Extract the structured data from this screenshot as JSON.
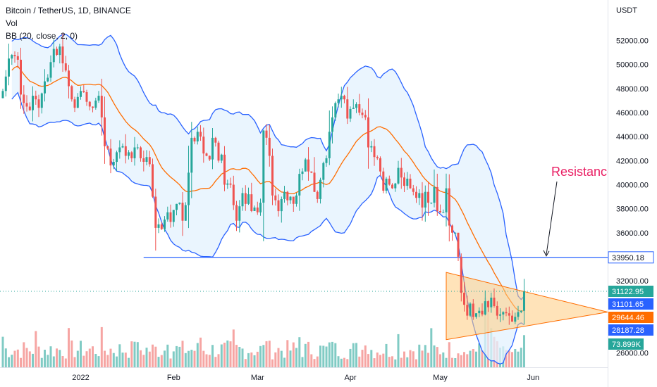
{
  "legend": {
    "symbol_line": "Bitcoin / TetherUS, 1D, BINANCE",
    "vol_label": "Vol",
    "bb_label": "BB (20, close, 2, 0)"
  },
  "colors": {
    "up": "#26a69a",
    "down": "#ef5350",
    "bb_band": "#2962ff",
    "bb_basis": "#ff6d00",
    "bb_fill": "#e3f2fd",
    "triangle_fill": "#ffcc80",
    "resistance": "#2962ff",
    "annotation": "#e91e63"
  },
  "chart_data": {
    "type": "candlestick",
    "y_axis_unit": "USDT",
    "ylim": [
      24800,
      54200
    ],
    "y_ticks": [
      26000,
      28000,
      30000,
      32000,
      34000,
      36000,
      38000,
      40000,
      42000,
      44000,
      46000,
      48000,
      50000,
      52000
    ],
    "y_tick_labels": [
      "26000.00",
      "28000.00",
      "30000.00",
      "32000.00",
      "34000.00",
      "36000.00",
      "38000.00",
      "40000.00",
      "42000.00",
      "44000.00",
      "46000.00",
      "48000.00",
      "50000.00",
      "52000.00"
    ],
    "x_ticks": [
      {
        "day": 26,
        "label": "2022"
      },
      {
        "day": 57,
        "label": "Feb"
      },
      {
        "day": 85,
        "label": "Mar"
      },
      {
        "day": 116,
        "label": "Apr"
      },
      {
        "day": 146,
        "label": "May"
      },
      {
        "day": 177,
        "label": "Jun"
      }
    ],
    "closes": [
      47800,
      49000,
      50500,
      50800,
      50700,
      50400,
      47500,
      46800,
      46500,
      46200,
      47400,
      47100,
      46400,
      47600,
      48600,
      48900,
      50200,
      51300,
      50800,
      51500,
      50100,
      49500,
      48200,
      47100,
      46400,
      47300,
      47800,
      47700,
      46900,
      46500,
      46400,
      47000,
      47400,
      45600,
      43200,
      43000,
      41600,
      41900,
      42700,
      43100,
      43200,
      42400,
      42700,
      42200,
      43100,
      43100,
      42200,
      41900,
      42300,
      41700,
      39000,
      36400,
      36700,
      36300,
      37100,
      37700,
      36900,
      37900,
      38400,
      38500,
      37000,
      38300,
      41000,
      43900,
      43600,
      44400,
      44000,
      42600,
      42400,
      42100,
      43900,
      43500,
      42000,
      42500,
      40000,
      40100,
      40000,
      38300,
      37000,
      38200,
      39300,
      38400,
      39200,
      37800,
      38100,
      37700,
      38500,
      44500,
      43900,
      42400,
      39100,
      38700,
      37800,
      38800,
      39400,
      38700,
      39000,
      38400,
      39100,
      40900,
      41100,
      42100,
      41100,
      41000,
      39400,
      38800,
      40400,
      41800,
      42200,
      44400,
      45600,
      46800,
      47100,
      47400,
      47100,
      45500,
      46300,
      46400,
      46700,
      46000,
      45800,
      45600,
      43100,
      43200,
      42300,
      42200,
      41100,
      39500,
      40500,
      40000,
      39700,
      40100,
      41400,
      40600,
      39900,
      40500,
      39700,
      39400,
      38900,
      39300,
      38100,
      39400,
      38500,
      38500,
      39800,
      37800,
      37700,
      37700,
      39700,
      36600,
      36000,
      36000,
      34000,
      31000,
      30000,
      29100,
      30100,
      29000,
      29300,
      29500,
      29200,
      30300,
      29800,
      30600,
      29900,
      29100,
      29200,
      29400,
      29300,
      29100,
      28600,
      29000,
      29400,
      29500,
      31100
    ],
    "volume": {
      "label": "73.899K",
      "last_value": 73899,
      "approx_recent_levels": [
        32000,
        28000,
        35000,
        30000,
        38000,
        42000,
        36000,
        55000,
        40000,
        160000,
        150000,
        90000,
        70000,
        60000,
        45000,
        48000,
        40000,
        38000,
        35000,
        42000,
        36000,
        45000,
        73899
      ]
    },
    "bollinger": {
      "length": 20,
      "source": "close",
      "mult": 2,
      "offset": 0
    },
    "resistance_level": 33950.18,
    "annotation": "Resistance",
    "price_tags": [
      {
        "label": "33950.18",
        "value": 33950.18,
        "kind": "resistance"
      },
      {
        "label": "31122.95",
        "value": 31122.95,
        "kind": "last"
      },
      {
        "label": "31101.65",
        "value": 31101.65,
        "kind": "bb_upper"
      },
      {
        "label": "29644.46",
        "value": 29644.46,
        "kind": "bb_basis"
      },
      {
        "label": "28187.28",
        "value": 28187.28,
        "kind": "bb_lower"
      },
      {
        "label": "73.899K",
        "value": 73899,
        "kind": "volume"
      }
    ],
    "triangle": {
      "apex_value": 29400,
      "upper_start": {
        "day": 148,
        "value": 32700
      },
      "lower_start": {
        "day": 148,
        "value": 27100
      }
    }
  }
}
